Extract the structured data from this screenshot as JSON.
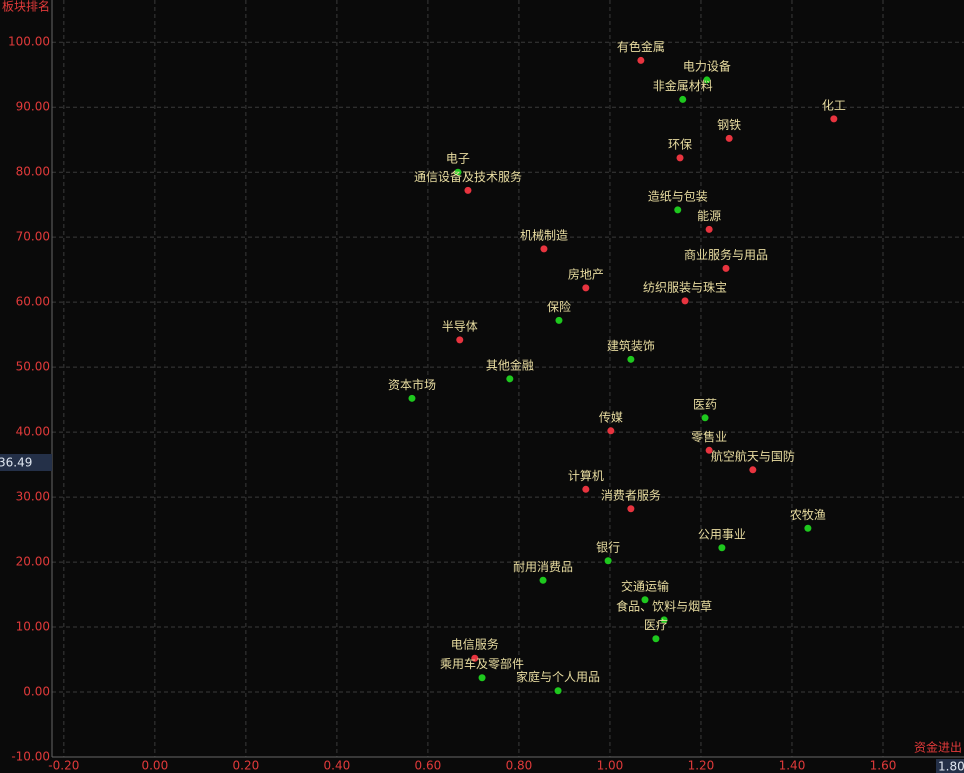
{
  "chart_data": {
    "type": "scatter",
    "y_label": "板块排名",
    "x_label": "资金进出",
    "y_readout": "36.49",
    "x_readout": "1.80",
    "xlim": [
      -0.226,
      1.778
    ],
    "ylim": [
      -10,
      106.5
    ],
    "grid": true,
    "xticks": [
      {
        "value": -0.2,
        "label": "-0.20"
      },
      {
        "value": 0,
        "label": "0.00"
      },
      {
        "value": 0.2,
        "label": "0.20"
      },
      {
        "value": 0.4,
        "label": "0.40"
      },
      {
        "value": 0.6,
        "label": "0.60"
      },
      {
        "value": 0.8,
        "label": "0.80"
      },
      {
        "value": 1.0,
        "label": "1.00"
      },
      {
        "value": 1.2,
        "label": "1.20"
      },
      {
        "value": 1.4,
        "label": "1.40"
      },
      {
        "value": 1.6,
        "label": "1.60"
      }
    ],
    "yticks": [
      {
        "value": -10,
        "label": "-10.00"
      },
      {
        "value": 0,
        "label": "0.00"
      },
      {
        "value": 10,
        "label": "10.00"
      },
      {
        "value": 20,
        "label": "20.00"
      },
      {
        "value": 30,
        "label": "30.00"
      },
      {
        "value": 40,
        "label": "40.00"
      },
      {
        "value": 50,
        "label": "50.00"
      },
      {
        "value": 60,
        "label": "60.00"
      },
      {
        "value": 70,
        "label": "70.00"
      },
      {
        "value": 80,
        "label": "80.00"
      },
      {
        "value": 90,
        "label": "90.00"
      },
      {
        "value": 100,
        "label": "100.00"
      }
    ],
    "points": [
      {
        "label": "有色金属",
        "x": 1.068,
        "y": 97.2,
        "color": "#e8343f"
      },
      {
        "label": "电力设备",
        "x": 1.213,
        "y": 94.2,
        "color": "#1ec81e"
      },
      {
        "label": "非金属材料",
        "x": 1.16,
        "y": 91.2,
        "color": "#1ec81e"
      },
      {
        "label": "化工",
        "x": 1.492,
        "y": 88.2,
        "color": "#e8343f"
      },
      {
        "label": "钢铁",
        "x": 1.262,
        "y": 85.2,
        "color": "#e8343f"
      },
      {
        "label": "环保",
        "x": 1.154,
        "y": 82.2,
        "color": "#e8343f"
      },
      {
        "label": "电子",
        "x": 0.666,
        "y": 80.0,
        "color": "#1ec81e"
      },
      {
        "label": "通信设备及技术服务",
        "x": 0.688,
        "y": 77.2,
        "color": "#e8343f"
      },
      {
        "label": "造纸与包装",
        "x": 1.149,
        "y": 74.2,
        "color": "#1ec81e"
      },
      {
        "label": "能源",
        "x": 1.218,
        "y": 71.2,
        "color": "#e8343f"
      },
      {
        "label": "机械制造",
        "x": 0.855,
        "y": 68.2,
        "color": "#e8343f"
      },
      {
        "label": "商业服务与用品",
        "x": 1.255,
        "y": 65.2,
        "color": "#e8343f"
      },
      {
        "label": "房地产",
        "x": 0.947,
        "y": 62.2,
        "color": "#e8343f"
      },
      {
        "label": "纺织服装与珠宝",
        "x": 1.165,
        "y": 60.2,
        "color": "#e8343f"
      },
      {
        "label": "保险",
        "x": 0.888,
        "y": 57.2,
        "color": "#1ec81e"
      },
      {
        "label": "半导体",
        "x": 0.67,
        "y": 54.2,
        "color": "#e8343f"
      },
      {
        "label": "建筑装饰",
        "x": 1.046,
        "y": 51.2,
        "color": "#1ec81e"
      },
      {
        "label": "其他金融",
        "x": 0.78,
        "y": 48.2,
        "color": "#1ec81e"
      },
      {
        "label": "资本市场",
        "x": 0.565,
        "y": 45.2,
        "color": "#1ec81e"
      },
      {
        "label": "医药",
        "x": 1.209,
        "y": 42.2,
        "color": "#1ec81e"
      },
      {
        "label": "传媒",
        "x": 1.002,
        "y": 40.2,
        "color": "#e8343f"
      },
      {
        "label": "零售业",
        "x": 1.218,
        "y": 37.2,
        "color": "#e8343f"
      },
      {
        "label": "航空航天与国防",
        "x": 1.314,
        "y": 34.2,
        "color": "#e8343f"
      },
      {
        "label": "计算机",
        "x": 0.947,
        "y": 31.2,
        "color": "#e8343f"
      },
      {
        "label": "消费者服务",
        "x": 1.046,
        "y": 28.2,
        "color": "#e8343f"
      },
      {
        "label": "农牧渔",
        "x": 1.435,
        "y": 25.2,
        "color": "#1ec81e"
      },
      {
        "label": "公用事业",
        "x": 1.246,
        "y": 22.2,
        "color": "#1ec81e"
      },
      {
        "label": "银行",
        "x": 0.996,
        "y": 20.2,
        "color": "#1ec81e"
      },
      {
        "label": "耐用消费品",
        "x": 0.853,
        "y": 17.2,
        "color": "#1ec81e"
      },
      {
        "label": "交通运输",
        "x": 1.077,
        "y": 14.2,
        "color": "#1ec81e"
      },
      {
        "label": "食品、饮料与烟草",
        "x": 1.119,
        "y": 11.1,
        "color": "#1ec81e"
      },
      {
        "label": "医疗",
        "x": 1.101,
        "y": 8.2,
        "color": "#1ec81e"
      },
      {
        "label": "电信服务",
        "x": 0.703,
        "y": 5.2,
        "color": "#e8343f"
      },
      {
        "label": "乘用车及零部件",
        "x": 0.719,
        "y": 2.2,
        "color": "#1ec81e"
      },
      {
        "label": "家庭与个人用品",
        "x": 0.886,
        "y": 0.2,
        "color": "#1ec81e"
      }
    ]
  }
}
